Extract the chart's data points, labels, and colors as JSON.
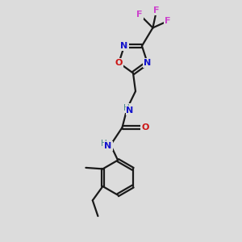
{
  "bg_color": "#dcdcdc",
  "bond_color": "#1a1a1a",
  "N_color": "#1414cc",
  "O_color": "#cc1414",
  "F_color": "#cc44cc",
  "H_color": "#4a8a8a",
  "line_width": 1.6,
  "dpi": 100,
  "fig_size": [
    3.0,
    3.0
  ],
  "xlim": [
    0,
    10
  ],
  "ylim": [
    0,
    10
  ]
}
